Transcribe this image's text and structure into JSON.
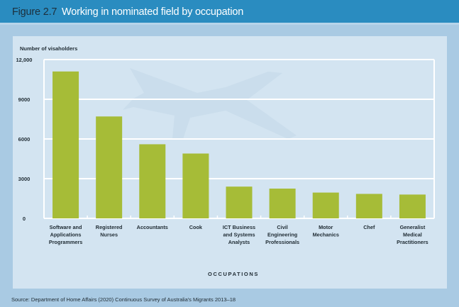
{
  "header": {
    "figure_number": "Figure 2.7",
    "title": "Working in nominated field by occupation"
  },
  "source": "Source: Department of Home Affairs (2020) Continuous Survey of Australia's Migrants 2013–18",
  "colors": {
    "bar": "#a6bc37",
    "header_bg": "#2a8cc0",
    "panel_bg": "#d3e4f1",
    "gridline": "#ffffff"
  },
  "chart_data": {
    "type": "bar",
    "title": "Working in nominated field by occupation",
    "ylabel": "Number of visaholders",
    "xlabel": "OCCUPATIONS",
    "ylim": [
      0,
      12000
    ],
    "yticks": [
      0,
      3000,
      6000,
      9000,
      12000
    ],
    "ytick_labels": [
      "0",
      "3000",
      "6000",
      "9000",
      "12,000"
    ],
    "grid": true,
    "categories": [
      [
        "Software and",
        "Applications",
        "Programmers"
      ],
      [
        "Registered",
        "Nurses"
      ],
      [
        "Accountants"
      ],
      [
        "Cook"
      ],
      [
        "ICT Business",
        "and Systems",
        "Analysts"
      ],
      [
        "Civil",
        "Engineering",
        "Professionals"
      ],
      [
        "Motor",
        "Mechanics"
      ],
      [
        "Chef"
      ],
      [
        "Generalist",
        "Medical",
        "Practitioners"
      ]
    ],
    "values": [
      11100,
      7700,
      5600,
      4900,
      2400,
      2250,
      1950,
      1850,
      1800
    ]
  }
}
